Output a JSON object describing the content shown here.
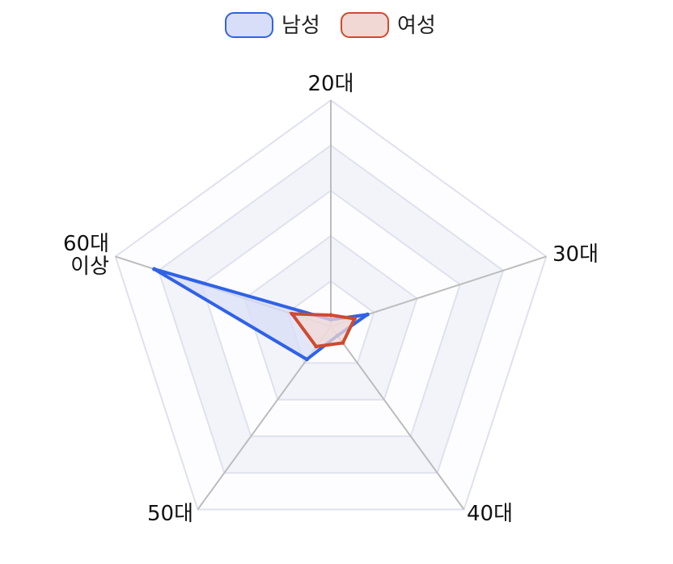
{
  "chart_data": {
    "type": "radar",
    "axes": [
      "20대",
      "30대",
      "40대",
      "50대",
      "60대\n이상"
    ],
    "range": [
      0,
      100
    ],
    "rings": 5,
    "series": [
      {
        "name": "남성",
        "values": [
          3,
          17,
          5,
          18,
          82
        ],
        "stroke": "#2f62e8",
        "fill": "#d8def7"
      },
      {
        "name": "여성",
        "values": [
          5,
          11,
          9,
          11,
          18
        ],
        "stroke": "#cf4a2e",
        "fill": "#f1d8d4"
      }
    ],
    "legend": "top-center",
    "colors": {
      "grid": "#dfe1ee",
      "spoke": "#bcbcbc",
      "band": "#f3f4fa"
    }
  }
}
